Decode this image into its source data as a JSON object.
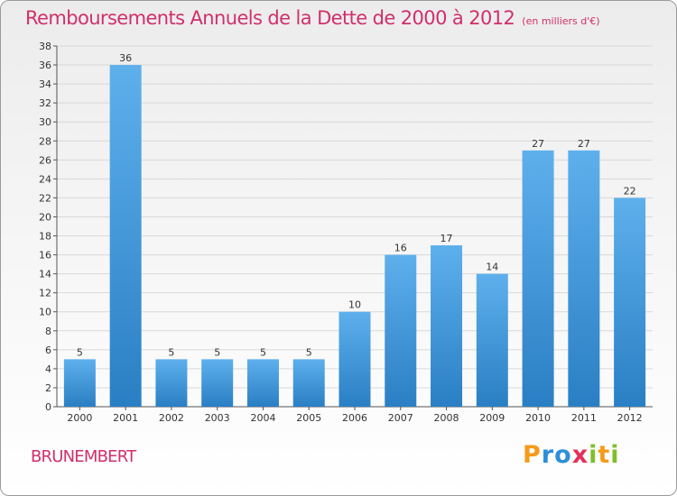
{
  "chart_data": {
    "type": "bar",
    "title": "Remboursements Annuels de la Dette de 2000 à 2012",
    "subtitle": "(en milliers d'€)",
    "categories": [
      "2000",
      "2001",
      "2002",
      "2003",
      "2004",
      "2005",
      "2006",
      "2007",
      "2008",
      "2009",
      "2010",
      "2011",
      "2012"
    ],
    "values": [
      5,
      36,
      5,
      5,
      5,
      5,
      10,
      16,
      17,
      14,
      27,
      27,
      22
    ],
    "data_labels": [
      "5",
      "36",
      "5",
      "5",
      "5",
      "5",
      "10",
      "16",
      "17",
      "14",
      "27",
      "27",
      "22"
    ],
    "yticks": [
      "0",
      "2",
      "4",
      "6",
      "8",
      "10",
      "12",
      "14",
      "16",
      "18",
      "20",
      "22",
      "24",
      "26",
      "28",
      "30",
      "32",
      "34",
      "36",
      "38"
    ],
    "ylim": [
      0,
      38
    ],
    "xlabel": "",
    "ylabel": "",
    "bar_color_light": "#5eb0ec",
    "bar_color_dark": "#2a7fc4"
  },
  "commune": "BRUNEMBERT",
  "logo": {
    "letters": [
      "P",
      "r",
      "o",
      "x",
      "i",
      "t",
      "i"
    ]
  }
}
